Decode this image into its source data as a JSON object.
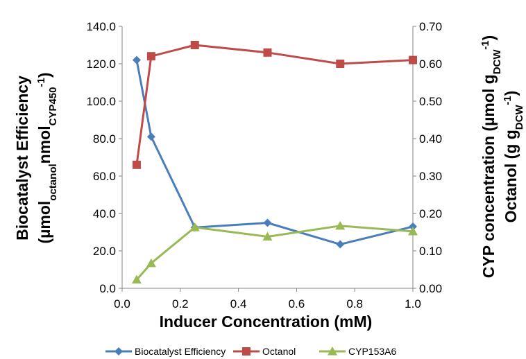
{
  "chart_data": {
    "type": "line",
    "x": [
      0.05,
      0.1,
      0.25,
      0.5,
      0.75,
      1.0
    ],
    "x_ticks": [
      "0.0",
      "0.2",
      "0.4",
      "0.6",
      "0.8",
      "1.0"
    ],
    "y_left_ticks": [
      "0.0",
      "20.0",
      "40.0",
      "60.0",
      "80.0",
      "100.0",
      "120.0",
      "140.0"
    ],
    "y_right_ticks": [
      "0.00",
      "0.10",
      "0.20",
      "0.30",
      "0.40",
      "0.50",
      "0.60",
      "0.70"
    ],
    "xlim": [
      0,
      1
    ],
    "ylim_left": [
      0,
      140
    ],
    "ylim_right": [
      0,
      0.7
    ],
    "xlabel": "Inducer Concentration (mM)",
    "ylabel_left": {
      "line1": "Biocatalyst Efficiency",
      "line2_prefix": "(µmol",
      "line2_sub1": "octanol",
      "line2_mid": "nmol",
      "line2_sub2": "CYP450",
      "line2_sup": "-1",
      "line2_suffix": ")"
    },
    "ylabel_right": {
      "line1_prefix": "CYP concentration (µmol g",
      "line1_sub": "DCW",
      "line1_sup": "-1",
      "line1_suffix": ")",
      "line2_prefix": "Octanol (g g",
      "line2_sub": "DCW",
      "line2_sup": "-1",
      "line2_suffix": ")"
    },
    "grid": false,
    "legend_position": "bottom",
    "series": [
      {
        "name": "Biocatalyst Efficiency",
        "axis": "left",
        "marker": "diamond",
        "color": "#4a7ebb",
        "values": [
          122,
          81,
          32.5,
          35,
          23.5,
          33
        ]
      },
      {
        "name": "Octanol",
        "axis": "right",
        "marker": "square",
        "color": "#be4b48",
        "values": [
          0.33,
          0.62,
          0.65,
          0.63,
          0.6,
          0.61
        ]
      },
      {
        "name": "CYP153A6",
        "axis": "right",
        "marker": "triangle",
        "color": "#98b954",
        "values": [
          0.023,
          0.067,
          0.163,
          0.138,
          0.167,
          0.152
        ]
      }
    ]
  }
}
